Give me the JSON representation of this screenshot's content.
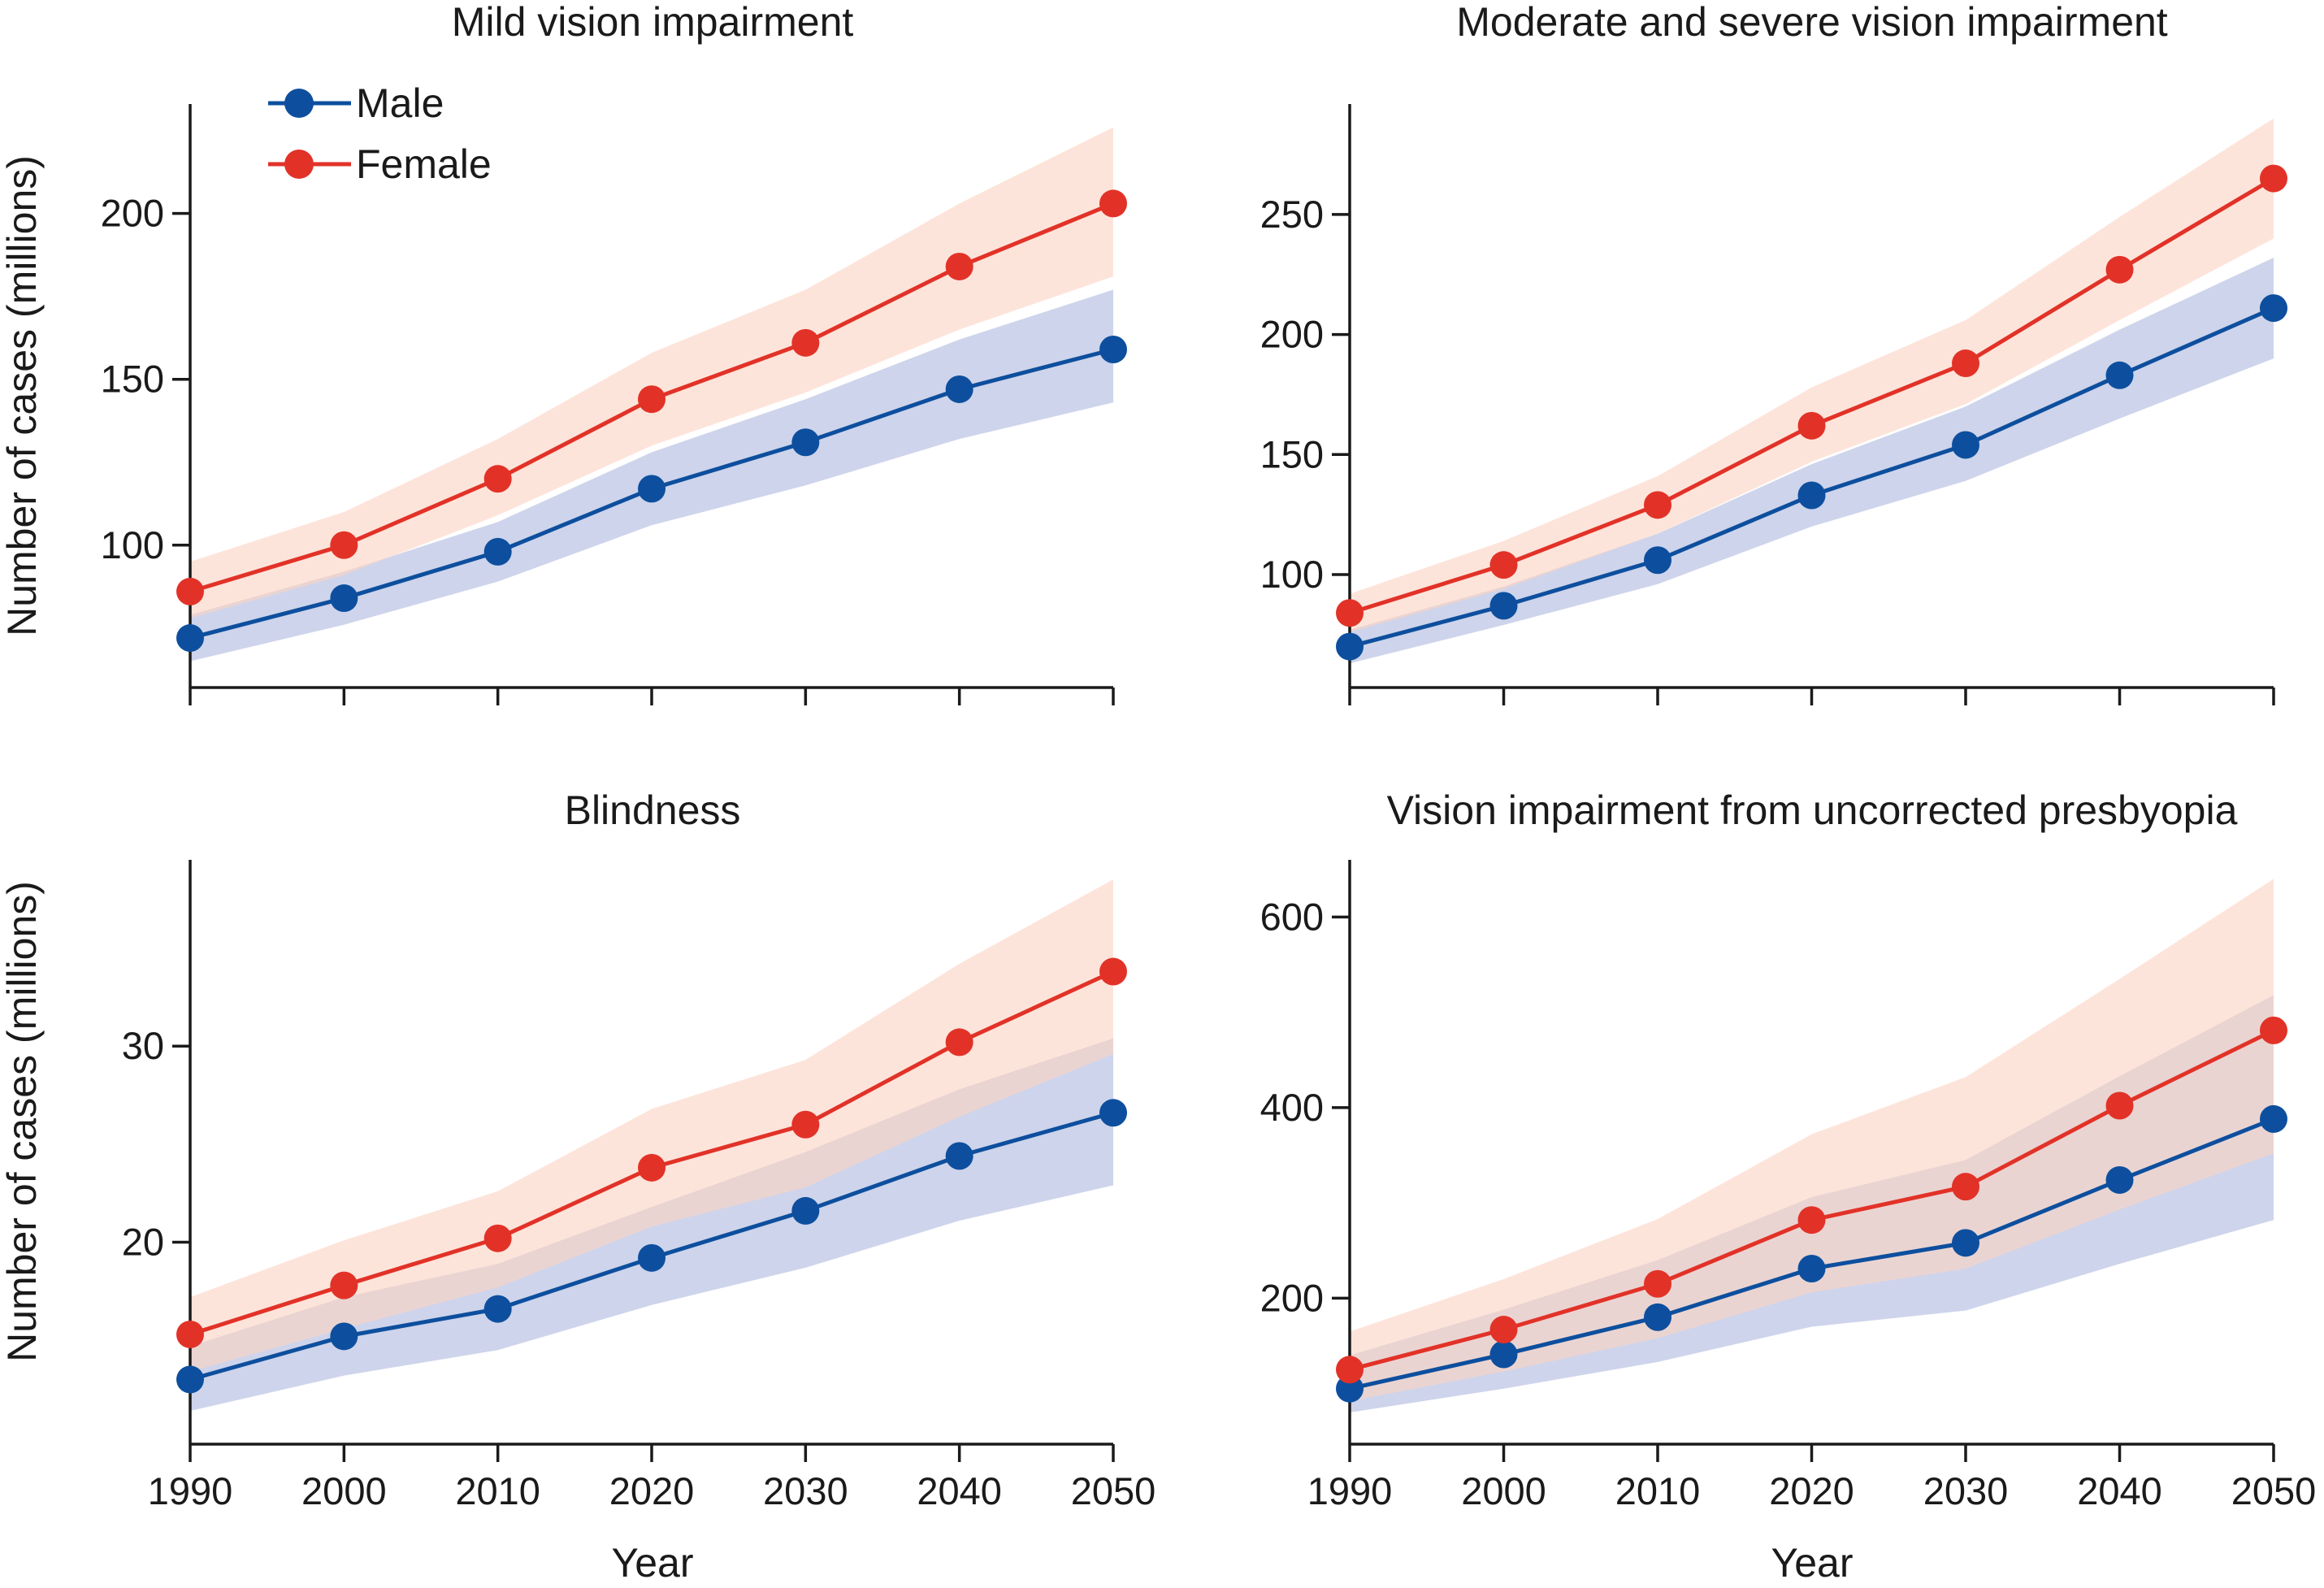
{
  "colors": {
    "male_line": "#0d4f9e",
    "female_line": "#e23228",
    "male_band": "#c5cde8",
    "female_band": "#fbd3c3",
    "axis": "#1a1a1a"
  },
  "legend": {
    "placement": "top-left of first panel",
    "items": [
      {
        "name": "Male",
        "color": "#0d4f9e"
      },
      {
        "name": "Female",
        "color": "#e23228"
      }
    ]
  },
  "y_axis_title": "Number of cases (millions)",
  "x_axis_title": "Year",
  "chart_data": [
    {
      "type": "line",
      "title": "Mild vision impairment",
      "x": [
        1990,
        2000,
        2010,
        2020,
        2030,
        2040,
        2050
      ],
      "xlim": [
        1990,
        2050
      ],
      "ylim": [
        60,
        233
      ],
      "yticks": [
        100,
        150,
        200
      ],
      "grid": false,
      "series": [
        {
          "name": "Male",
          "values": [
            72,
            84,
            98,
            117,
            131,
            147,
            159
          ],
          "lower": [
            65,
            76,
            89,
            106,
            118,
            132,
            143
          ],
          "upper": [
            79,
            92,
            107,
            128,
            144,
            162,
            177
          ]
        },
        {
          "name": "Female",
          "values": [
            86,
            100,
            120,
            144,
            161,
            184,
            203
          ],
          "lower": [
            78,
            91,
            109,
            130,
            146,
            165,
            181
          ],
          "upper": [
            95,
            110,
            132,
            158,
            177,
            203,
            226
          ]
        }
      ]
    },
    {
      "type": "line",
      "title": "Moderate and severe vision impairment",
      "x": [
        1990,
        2000,
        2010,
        2020,
        2030,
        2040,
        2050
      ],
      "xlim": [
        1990,
        2050
      ],
      "ylim": [
        57,
        296
      ],
      "yticks": [
        100,
        150,
        200,
        250
      ],
      "grid": false,
      "series": [
        {
          "name": "Male",
          "values": [
            70,
            87,
            106,
            133,
            154,
            183,
            211
          ],
          "lower": [
            63,
            79,
            96,
            120,
            139,
            165,
            190
          ],
          "upper": [
            77,
            95,
            117,
            146,
            170,
            202,
            232
          ]
        },
        {
          "name": "Female",
          "values": [
            84,
            104,
            129,
            162,
            188,
            227,
            265
          ],
          "lower": [
            76,
            94,
            117,
            147,
            171,
            206,
            240
          ],
          "upper": [
            92,
            114,
            141,
            178,
            206,
            249,
            290
          ]
        }
      ]
    },
    {
      "type": "line",
      "title": "Blindness",
      "x": [
        1990,
        2000,
        2010,
        2020,
        2030,
        2040,
        2050
      ],
      "xlim": [
        1990,
        2050
      ],
      "ylim": [
        10.2,
        39.5
      ],
      "yticks": [
        20,
        30
      ],
      "grid": false,
      "series": [
        {
          "name": "Male",
          "values": [
            13.0,
            15.2,
            16.6,
            19.2,
            21.6,
            24.4,
            26.6
          ],
          "lower": [
            11.4,
            13.2,
            14.5,
            16.8,
            18.7,
            21.1,
            22.9
          ],
          "upper": [
            14.7,
            17.2,
            18.9,
            21.8,
            24.6,
            27.8,
            30.4
          ]
        },
        {
          "name": "Female",
          "values": [
            15.3,
            17.8,
            20.2,
            23.8,
            26.0,
            30.2,
            33.8
          ],
          "lower": [
            13.4,
            15.6,
            17.7,
            20.8,
            22.8,
            26.4,
            29.6
          ],
          "upper": [
            17.2,
            20.1,
            22.6,
            26.8,
            29.3,
            34.2,
            38.5
          ]
        }
      ]
    },
    {
      "type": "line",
      "title": "Vision impairment from uncorrected presbyopia",
      "x": [
        1990,
        2000,
        2010,
        2020,
        2030,
        2040,
        2050
      ],
      "xlim": [
        1990,
        2050
      ],
      "ylim": [
        57,
        660
      ],
      "yticks": [
        200,
        400,
        600
      ],
      "grid": false,
      "series": [
        {
          "name": "Male",
          "values": [
            105,
            141,
            180,
            231,
            258,
            324,
            388
          ],
          "lower": [
            80,
            105,
            133,
            170,
            187,
            236,
            282
          ],
          "upper": [
            140,
            188,
            240,
            306,
            345,
            433,
            518
          ]
        },
        {
          "name": "Female",
          "values": [
            125,
            167,
            215,
            282,
            317,
            402,
            481
          ],
          "lower": [
            92,
            123,
            158,
            206,
            231,
            293,
            352
          ],
          "upper": [
            165,
            220,
            283,
            372,
            432,
            535,
            640
          ]
        }
      ]
    }
  ]
}
